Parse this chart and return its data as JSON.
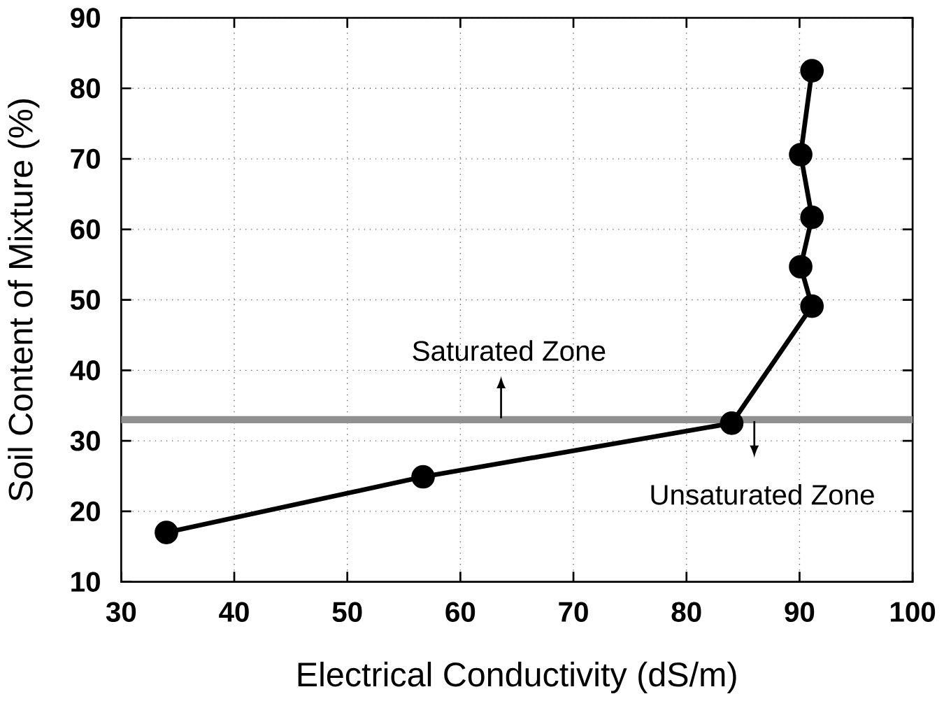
{
  "chart_data": {
    "type": "line",
    "xlabel": "Electrical  Conductivity  (dS/m)",
    "ylabel": "Soil Content of Mixture (%)",
    "x": [
      34,
      56.7,
      84,
      91.1,
      90.1,
      91.1,
      90.1,
      91.1
    ],
    "series": [
      {
        "color": "#000000",
        "values": [
          17,
          24.9,
          32.5,
          49.1,
          54.7,
          61.7,
          70.6,
          82.5
        ]
      }
    ],
    "xlim": [
      30,
      100
    ],
    "xticks": [
      30,
      40,
      50,
      60,
      70,
      80,
      90,
      100
    ],
    "ylim": [
      10,
      90
    ],
    "yticks": [
      10,
      20,
      30,
      40,
      50,
      60,
      70,
      80,
      90
    ],
    "grid": true,
    "marker": "circle",
    "line_style": "solid",
    "ref_lines": [
      {
        "axis": "y",
        "value": 33,
        "color": "#909090"
      }
    ],
    "annotations": [
      "Saturated Zone",
      "Unsaturated Zone"
    ]
  }
}
